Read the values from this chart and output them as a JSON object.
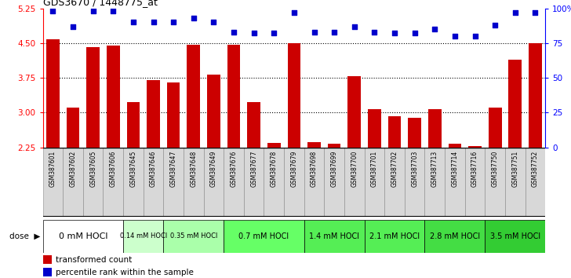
{
  "title": "GDS3670 / 1448775_at",
  "samples": [
    "GSM387601",
    "GSM387602",
    "GSM387605",
    "GSM387606",
    "GSM387645",
    "GSM387646",
    "GSM387647",
    "GSM387648",
    "GSM387649",
    "GSM387676",
    "GSM387677",
    "GSM387678",
    "GSM387679",
    "GSM387698",
    "GSM387699",
    "GSM387700",
    "GSM387701",
    "GSM387702",
    "GSM387703",
    "GSM387713",
    "GSM387714",
    "GSM387716",
    "GSM387750",
    "GSM387751",
    "GSM387752"
  ],
  "bar_values": [
    4.58,
    3.1,
    4.42,
    4.45,
    3.22,
    3.7,
    3.65,
    4.47,
    3.82,
    4.47,
    3.22,
    2.35,
    4.5,
    2.37,
    2.32,
    3.78,
    3.08,
    2.93,
    2.88,
    3.07,
    2.33,
    2.28,
    3.1,
    4.15,
    4.5
  ],
  "percentile_values": [
    98,
    87,
    98,
    98,
    90,
    90,
    90,
    93,
    90,
    83,
    82,
    82,
    97,
    83,
    83,
    87,
    83,
    82,
    82,
    85,
    80,
    80,
    88,
    97,
    97
  ],
  "doses": [
    {
      "label": "0 mM HOCl",
      "start": 0,
      "end": 4,
      "color": "#ffffff",
      "fontsize": 8
    },
    {
      "label": "0.14 mM HOCl",
      "start": 4,
      "end": 6,
      "color": "#ccffcc",
      "fontsize": 6
    },
    {
      "label": "0.35 mM HOCl",
      "start": 6,
      "end": 9,
      "color": "#aaffaa",
      "fontsize": 6
    },
    {
      "label": "0.7 mM HOCl",
      "start": 9,
      "end": 13,
      "color": "#66ff66",
      "fontsize": 7
    },
    {
      "label": "1.4 mM HOCl",
      "start": 13,
      "end": 16,
      "color": "#55ee55",
      "fontsize": 7
    },
    {
      "label": "2.1 mM HOCl",
      "start": 16,
      "end": 19,
      "color": "#55ee55",
      "fontsize": 7
    },
    {
      "label": "2.8 mM HOCl",
      "start": 19,
      "end": 22,
      "color": "#44dd44",
      "fontsize": 7
    },
    {
      "label": "3.5 mM HOCl",
      "start": 22,
      "end": 25,
      "color": "#33cc33",
      "fontsize": 7
    }
  ],
  "ylim_left": [
    2.25,
    5.25
  ],
  "yticks_left": [
    2.25,
    3.0,
    3.75,
    4.5,
    5.25
  ],
  "ylim_right": [
    0,
    100
  ],
  "yticks_right": [
    0,
    25,
    50,
    75,
    100
  ],
  "bar_color": "#cc0000",
  "dot_color": "#0000cc",
  "plot_bg": "#ffffff",
  "sample_cell_bg": "#d8d8d8",
  "legend_red": "transformed count",
  "legend_blue": "percentile rank within the sample"
}
